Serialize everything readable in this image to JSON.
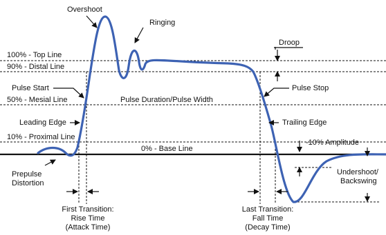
{
  "diagram": {
    "labels": {
      "overshoot": "Overshoot",
      "ringing": "Ringing",
      "droop": "Droop",
      "top_line": "100% - Top Line",
      "distal_line": "90% - Distal Line",
      "pulse_start": "Pulse Start",
      "mesial_line": "50% - Mesial Line",
      "pulse_duration": "Pulse Duration/Pulse Width",
      "pulse_stop": "Pulse Stop",
      "leading_edge": "Leading Edge",
      "trailing_edge": "Trailing Edge",
      "proximal_line": "10% - Proximal Line",
      "base_line": "0% - Base Line",
      "neg_amplitude": "-10% Amplitude",
      "prepulse_1": "Prepulse",
      "prepulse_2": "Distortion",
      "undershoot_1": "Undershoot/",
      "undershoot_2": "Backswing",
      "first_transition_1": "First Transition:",
      "first_transition_2": "Rise Time",
      "first_transition_3": "(Attack Time)",
      "last_transition_1": "Last Transition:",
      "last_transition_2": "Fall Time",
      "last_transition_3": "(Decay Time)"
    },
    "colors": {
      "waveform": "#3d62b3",
      "lines": "#111111"
    }
  }
}
